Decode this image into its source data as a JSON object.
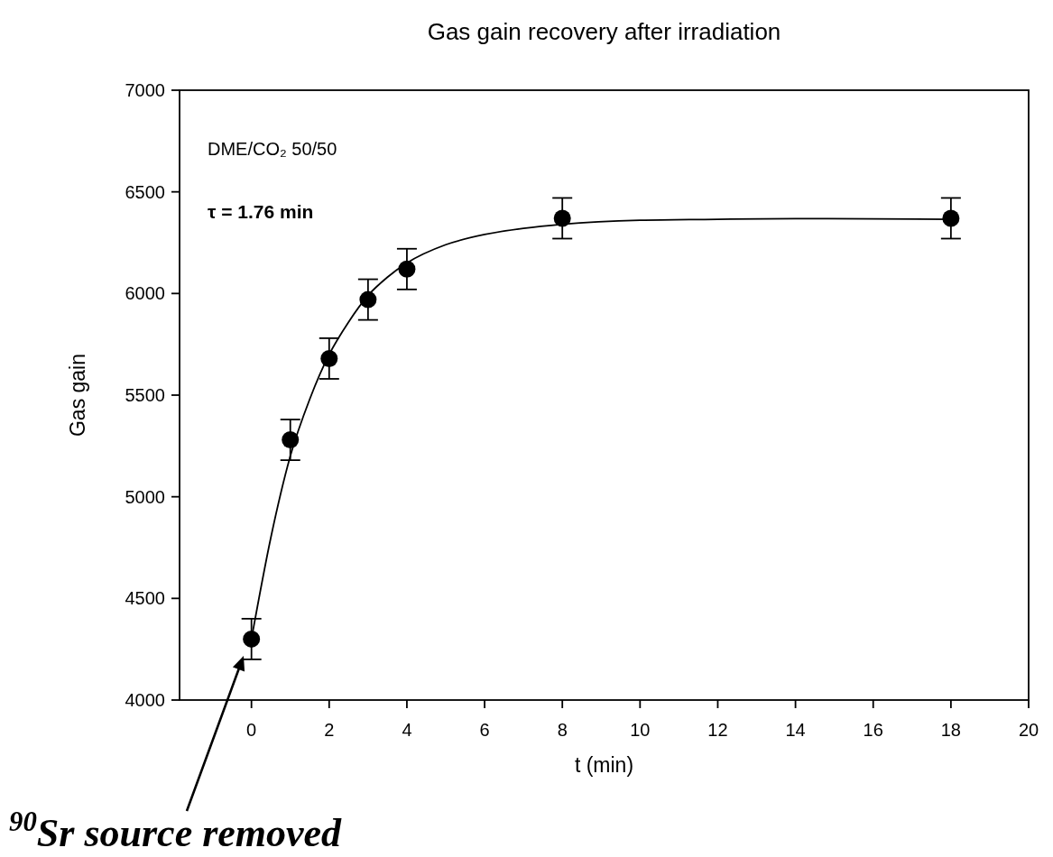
{
  "chart_data": {
    "type": "scatter",
    "title": "Gas gain recovery after irradiation",
    "xlabel": "t (min)",
    "ylabel": "Gas gain",
    "xlim": [
      -1.85,
      20
    ],
    "xticks": [
      0,
      2,
      4,
      6,
      8,
      10,
      12,
      14,
      16,
      18,
      20
    ],
    "ylim": [
      4000,
      7000
    ],
    "yticks": [
      4000,
      4500,
      5000,
      5500,
      6000,
      6500,
      7000
    ],
    "series": [
      {
        "color": "#000000",
        "marker": "circle",
        "x": [
          0,
          1,
          2,
          3,
          4,
          8,
          18
        ],
        "values": [
          4300,
          5280,
          5680,
          5970,
          6120,
          6370,
          6370
        ],
        "errors": [
          100,
          100,
          100,
          100,
          100,
          100,
          100
        ]
      },
      {
        "type": "line",
        "color": "#000000",
        "marker": "none",
        "line_style": "solid",
        "x": [
          0,
          0.5,
          1,
          1.5,
          2,
          2.5,
          3,
          3.5,
          4,
          5,
          6,
          7,
          8,
          10,
          12,
          14,
          18
        ],
        "values": [
          4300,
          4800,
          5200,
          5480,
          5700,
          5860,
          5990,
          6080,
          6150,
          6240,
          6290,
          6320,
          6340,
          6360,
          6365,
          6368,
          6365
        ]
      }
    ],
    "annotations": [
      "DME/CO₂ 50/50",
      "τ = 1.76 min",
      "$^{90}$Sr source removed"
    ]
  }
}
